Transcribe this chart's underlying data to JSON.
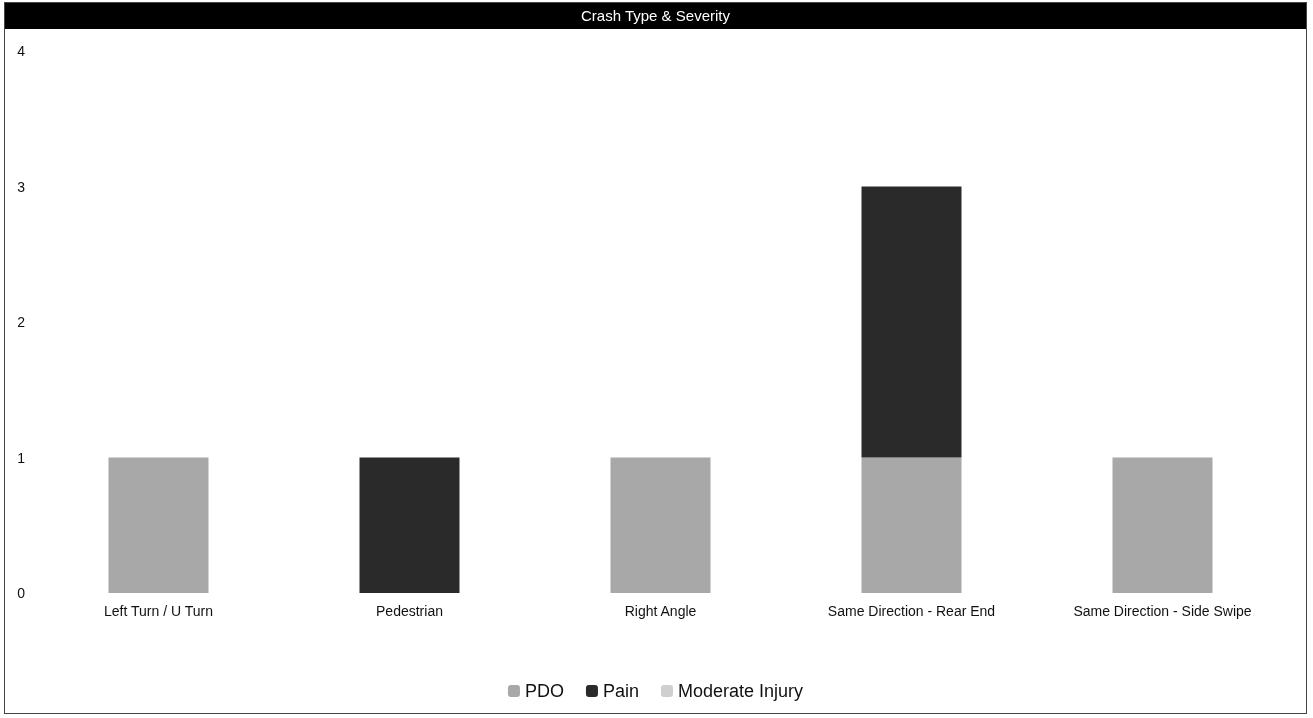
{
  "chart_data": {
    "type": "bar",
    "title": "Crash Type & Severity",
    "categories": [
      "Left Turn / U Turn",
      "Pedestrian",
      "Right Angle",
      "Same Direction - Rear End",
      "Same Direction - Side Swipe"
    ],
    "series": [
      {
        "name": "PDO",
        "color": "#a8a8a8",
        "values": [
          1,
          0,
          1,
          1,
          1
        ]
      },
      {
        "name": "Pain",
        "color": "#2a2a2a",
        "values": [
          0,
          1,
          0,
          2,
          0
        ]
      },
      {
        "name": "Moderate Injury",
        "color": "#cfcfcf",
        "values": [
          0,
          0,
          0,
          0,
          0
        ]
      }
    ],
    "stacked": true,
    "ylim": [
      0,
      4
    ],
    "yticks": [
      0,
      1,
      2,
      3,
      4
    ],
    "grid": false,
    "legend": "bottom"
  }
}
